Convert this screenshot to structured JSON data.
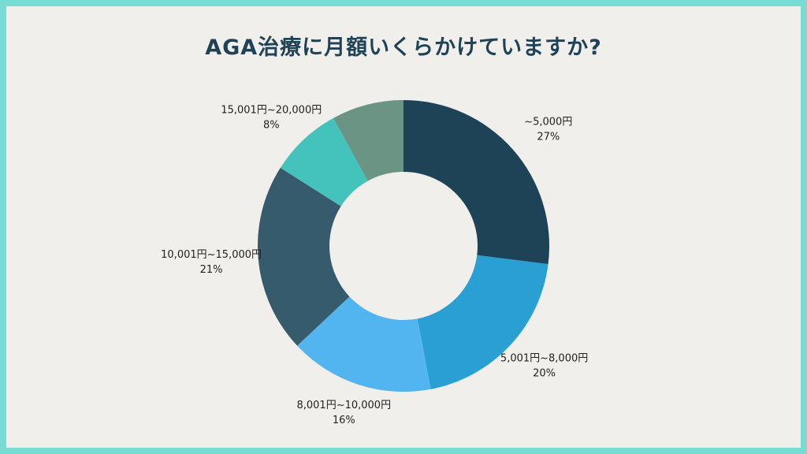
{
  "chart_data": {
    "type": "pie",
    "title": "AGA治療に月額いくらかけていますか?",
    "donut": true,
    "categories": [
      "~5,000円",
      "5,001円~8,000円",
      "8,001円~10,000円",
      "10,001円~15,000円",
      "15,001円~20,000円"
    ],
    "values": [
      27,
      20,
      16,
      21,
      8
    ],
    "labels": [
      "27%",
      "20%",
      "16%",
      "21%",
      "8%"
    ],
    "colors": [
      "#1e4356",
      "#2a9fd4",
      "#52b5f0",
      "#365b6d",
      "#43c3bc",
      "#6b9484"
    ],
    "unit": "%"
  }
}
